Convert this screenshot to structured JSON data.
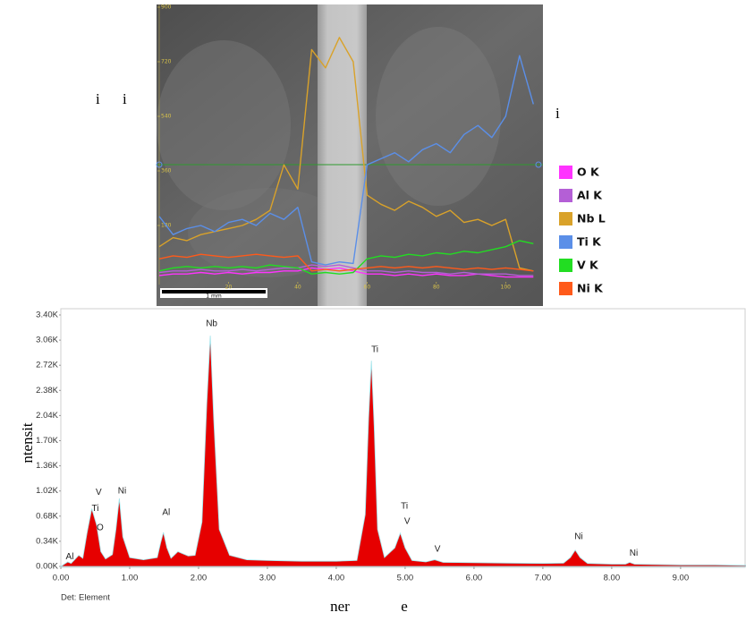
{
  "fragments": [
    "i",
    "i",
    "i"
  ],
  "chart_data": [
    {
      "type": "line",
      "x": [
        0,
        4,
        8,
        12,
        16,
        20,
        24,
        28,
        32,
        36,
        40,
        44,
        48,
        52,
        56,
        60,
        64,
        68,
        72,
        76,
        80,
        84,
        88,
        92,
        96,
        100,
        104,
        108
      ],
      "xlim": [
        0,
        110
      ],
      "xticks": [
        20,
        40,
        60,
        80,
        100
      ],
      "ylim": [
        0,
        900
      ],
      "yticks": [
        180,
        360,
        540,
        720,
        900
      ],
      "scale_bar": "1 mm",
      "series": [
        {
          "name": "O K",
          "color": "#ff33ff",
          "values": [
            15,
            20,
            20,
            25,
            20,
            25,
            20,
            25,
            25,
            30,
            30,
            40,
            35,
            40,
            30,
            20,
            20,
            15,
            20,
            15,
            20,
            15,
            15,
            20,
            15,
            10,
            10,
            10
          ]
        },
        {
          "name": "Al K",
          "color": "#b45fd6",
          "values": [
            25,
            30,
            30,
            35,
            30,
            30,
            35,
            30,
            35,
            40,
            40,
            50,
            45,
            50,
            40,
            30,
            30,
            25,
            30,
            25,
            25,
            20,
            25,
            20,
            20,
            20,
            15,
            15
          ]
        },
        {
          "name": "Nb L",
          "color": "#d9a22a",
          "values": [
            110,
            140,
            130,
            150,
            160,
            170,
            180,
            200,
            230,
            380,
            300,
            760,
            700,
            800,
            720,
            280,
            250,
            230,
            260,
            240,
            210,
            230,
            190,
            200,
            180,
            200,
            40,
            30
          ]
        },
        {
          "name": "Ti K",
          "color": "#5b8fe8",
          "values": [
            210,
            150,
            170,
            180,
            160,
            190,
            200,
            180,
            220,
            200,
            240,
            60,
            50,
            60,
            55,
            380,
            400,
            420,
            390,
            430,
            450,
            420,
            480,
            510,
            470,
            540,
            740,
            580
          ]
        },
        {
          "name": "V K",
          "color": "#22dd22",
          "values": [
            30,
            40,
            45,
            40,
            45,
            40,
            45,
            40,
            50,
            45,
            40,
            20,
            25,
            20,
            25,
            70,
            80,
            75,
            85,
            80,
            90,
            85,
            95,
            90,
            100,
            110,
            130,
            120
          ]
        },
        {
          "name": "Ni K",
          "color": "#ff5a1a",
          "values": [
            70,
            80,
            75,
            85,
            80,
            75,
            80,
            85,
            80,
            75,
            80,
            30,
            35,
            30,
            35,
            40,
            45,
            40,
            45,
            40,
            45,
            40,
            35,
            40,
            35,
            40,
            35,
            30
          ]
        }
      ]
    },
    {
      "type": "area",
      "color": "#e60000",
      "x_label_parts": [
        "ner",
        "e"
      ],
      "y_label": "ntensit",
      "footer": "Det: Element",
      "x": [
        0,
        0.1,
        0.15,
        0.2,
        0.26,
        0.32,
        0.38,
        0.45,
        0.52,
        0.58,
        0.65,
        0.75,
        0.8,
        0.85,
        0.9,
        1.0,
        1.2,
        1.4,
        1.45,
        1.49,
        1.54,
        1.6,
        1.7,
        1.75,
        1.85,
        1.95,
        2.05,
        2.12,
        2.17,
        2.22,
        2.3,
        2.45,
        2.7,
        3.0,
        3.5,
        4.0,
        4.3,
        4.42,
        4.47,
        4.51,
        4.55,
        4.6,
        4.7,
        4.85,
        4.93,
        5.0,
        5.1,
        5.3,
        5.43,
        5.55,
        6.0,
        6.5,
        7.0,
        7.3,
        7.4,
        7.47,
        7.54,
        7.65,
        8.0,
        8.2,
        8.26,
        8.33,
        8.6,
        9.0,
        9.5,
        9.95
      ],
      "values": [
        0,
        60,
        40,
        90,
        150,
        110,
        450,
        780,
        560,
        200,
        100,
        160,
        500,
        920,
        400,
        120,
        90,
        120,
        320,
        460,
        250,
        110,
        200,
        180,
        140,
        150,
        600,
        2200,
        3120,
        2000,
        500,
        150,
        90,
        80,
        70,
        70,
        80,
        700,
        2000,
        2780,
        1900,
        500,
        120,
        250,
        450,
        250,
        80,
        60,
        90,
        55,
        50,
        45,
        40,
        45,
        120,
        220,
        120,
        40,
        30,
        30,
        55,
        30,
        25,
        20,
        20,
        15
      ],
      "xlim": [
        0,
        9.95
      ],
      "xticks": [
        {
          "value": 0,
          "label": "0.00"
        },
        {
          "value": 1,
          "label": "1.00"
        },
        {
          "value": 2,
          "label": "2.00"
        },
        {
          "value": 3,
          "label": "3.00"
        },
        {
          "value": 4,
          "label": "4.00"
        },
        {
          "value": 5,
          "label": "5.00"
        },
        {
          "value": 6,
          "label": "6.00"
        },
        {
          "value": 7,
          "label": "7.00"
        },
        {
          "value": 8,
          "label": "8.00"
        },
        {
          "value": 9,
          "label": "9.00"
        }
      ],
      "ylim": [
        0,
        3400
      ],
      "yticks": [
        {
          "value": 0,
          "label": "0.00K"
        },
        {
          "value": 340,
          "label": "0.34K"
        },
        {
          "value": 680,
          "label": "0.68K"
        },
        {
          "value": 1020,
          "label": "1.02K"
        },
        {
          "value": 1360,
          "label": "1.36K"
        },
        {
          "value": 1700,
          "label": "1.70K"
        },
        {
          "value": 2040,
          "label": "2.04K"
        },
        {
          "value": 2380,
          "label": "2.38K"
        },
        {
          "value": 2720,
          "label": "2.72K"
        },
        {
          "value": 3060,
          "label": "3.06K"
        },
        {
          "value": 3400,
          "label": "3.40K"
        }
      ],
      "annotations": [
        {
          "text": "Al",
          "x": 0.13,
          "y": 130
        },
        {
          "text": "V",
          "x": 0.55,
          "y": 1000
        },
        {
          "text": "Ti",
          "x": 0.5,
          "y": 780
        },
        {
          "text": "O",
          "x": 0.57,
          "y": 520
        },
        {
          "text": "Ni",
          "x": 0.89,
          "y": 1020
        },
        {
          "text": "Al",
          "x": 1.53,
          "y": 730
        },
        {
          "text": "Nb",
          "x": 2.19,
          "y": 3280
        },
        {
          "text": "Ti",
          "x": 4.56,
          "y": 2930
        },
        {
          "text": "Ti",
          "x": 4.99,
          "y": 810
        },
        {
          "text": "V",
          "x": 5.03,
          "y": 605
        },
        {
          "text": "V",
          "x": 5.47,
          "y": 230
        },
        {
          "text": "Ni",
          "x": 7.52,
          "y": 400
        },
        {
          "text": "Ni",
          "x": 8.32,
          "y": 180
        }
      ]
    }
  ]
}
